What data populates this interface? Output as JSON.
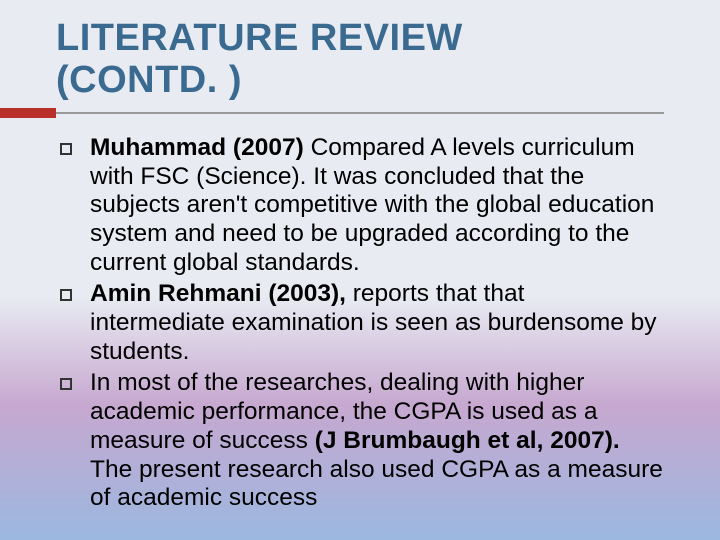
{
  "title_fontsize": 38,
  "title_color": "#3b6a90",
  "accent_color": "#b92f2a",
  "underline_color": "#9a9a9a",
  "body_fontsize": 24.5,
  "body_color": "#000000",
  "bg_gradient": [
    "#e8ebf2",
    "#e8ebf2",
    "#c7a8d0",
    "#9bb8e0"
  ],
  "title_line1": "LITERATURE REVIEW",
  "title_line2": "(CONTD. )",
  "items": [
    {
      "bold": "Muhammad (2007)",
      "rest": " Compared A levels curriculum with FSC (Science). It was concluded that the subjects aren't competitive with the global education system and need to be upgraded according to the current global standards."
    },
    {
      "bold": "Amin Rehmani (2003),",
      "rest": " reports that that intermediate examination is seen as burdensome by students."
    },
    {
      "pre": "In most of the researches, dealing with higher academic performance, the CGPA is used as a measure of success ",
      "bold": "(J Brumbaugh et al, 2007).",
      "rest": " The present research also used CGPA as a measure of academic success"
    }
  ]
}
